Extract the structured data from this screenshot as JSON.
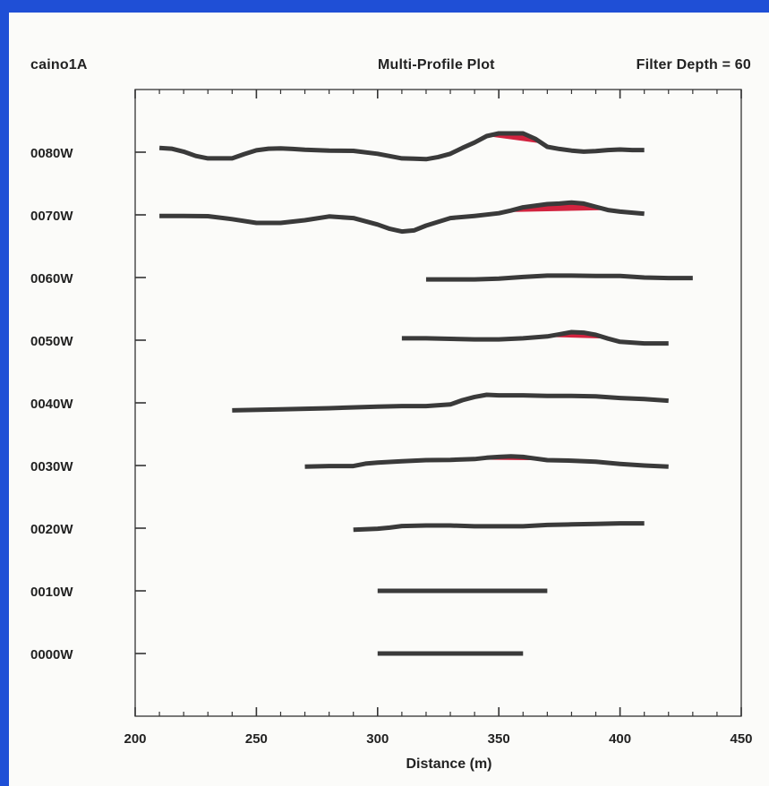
{
  "header": {
    "file_label": "caino1A",
    "filter_label": "Filter Depth =  60"
  },
  "colors": {
    "background": "#1f4fd6",
    "panel": "#fbfbf9",
    "profile_line": "#3a3a3a",
    "anomaly_fill": "#d2233f"
  },
  "chart_data": {
    "type": "line",
    "title": "Multi-Profile Plot",
    "xlabel": "Distance (m)",
    "ylabel": "",
    "xlim": [
      200,
      450
    ],
    "xticks": [
      "200",
      "250",
      "300",
      "350",
      "400",
      "450"
    ],
    "grid": false,
    "legend": "none",
    "series": [
      {
        "name": "0080W",
        "x": [
          210,
          215,
          220,
          225,
          230,
          235,
          240,
          245,
          250,
          255,
          260,
          265,
          270,
          280,
          290,
          300,
          310,
          315,
          320,
          325,
          330,
          335,
          340,
          345,
          350,
          355,
          360,
          365,
          370,
          375,
          380,
          385,
          390,
          395,
          400,
          405,
          410
        ],
        "y": [
          0.8,
          0.65,
          0.1,
          -0.7,
          -1.15,
          -1.15,
          -1.15,
          -0.35,
          0.35,
          0.65,
          0.7,
          0.6,
          0.45,
          0.3,
          0.25,
          -0.3,
          -1.15,
          -1.2,
          -1.3,
          -0.9,
          -0.3,
          0.8,
          1.8,
          3.0,
          3.5,
          3.5,
          3.5,
          2.5,
          1.0,
          0.6,
          0.3,
          0.1,
          0.2,
          0.4,
          0.5,
          0.4,
          0.4
        ],
        "anomaly_range": [
          345,
          368
        ]
      },
      {
        "name": "0070W",
        "x": [
          210,
          220,
          230,
          240,
          250,
          260,
          270,
          280,
          290,
          300,
          305,
          310,
          315,
          320,
          330,
          340,
          350,
          355,
          360,
          370,
          375,
          380,
          385,
          390,
          395,
          400,
          410
        ],
        "y": [
          -0.2,
          -0.2,
          -0.25,
          -0.8,
          -1.5,
          -1.5,
          -1.0,
          -0.3,
          -0.6,
          -1.8,
          -2.6,
          -3.1,
          -2.9,
          -2.0,
          -0.6,
          -0.2,
          0.3,
          0.8,
          1.4,
          2.0,
          2.1,
          2.3,
          2.1,
          1.5,
          0.9,
          0.6,
          0.2
        ],
        "anomaly_range": [
          352,
          395
        ]
      },
      {
        "name": "0060W",
        "x": [
          320,
          330,
          340,
          350,
          360,
          370,
          380,
          390,
          400,
          410,
          420,
          430
        ],
        "y": [
          -0.35,
          -0.35,
          -0.35,
          -0.2,
          0.1,
          0.35,
          0.35,
          0.3,
          0.3,
          0.0,
          -0.1,
          -0.1
        ],
        "anomaly_range": null
      },
      {
        "name": "0050W",
        "x": [
          310,
          320,
          330,
          340,
          350,
          360,
          370,
          375,
          380,
          385,
          390,
          395,
          400,
          410,
          420
        ],
        "y": [
          0.35,
          0.35,
          0.25,
          0.15,
          0.15,
          0.35,
          0.7,
          1.1,
          1.5,
          1.4,
          1.0,
          0.3,
          -0.3,
          -0.6,
          -0.6
        ],
        "anomaly_range": [
          368,
          395
        ]
      },
      {
        "name": "0040W",
        "x": [
          240,
          260,
          280,
          300,
          310,
          320,
          330,
          335,
          340,
          345,
          350,
          360,
          370,
          380,
          390,
          400,
          410,
          420
        ],
        "y": [
          -1.4,
          -1.2,
          -1.0,
          -0.7,
          -0.6,
          -0.6,
          -0.3,
          0.5,
          1.1,
          1.5,
          1.4,
          1.4,
          1.3,
          1.3,
          1.2,
          0.9,
          0.7,
          0.4
        ],
        "anomaly_range": [
          343,
          398
        ]
      },
      {
        "name": "0030W",
        "x": [
          270,
          280,
          290,
          295,
          300,
          310,
          320,
          330,
          340,
          345,
          350,
          355,
          360,
          365,
          370,
          380,
          390,
          400,
          410,
          420
        ],
        "y": [
          -0.2,
          -0.1,
          -0.1,
          0.35,
          0.55,
          0.8,
          1.0,
          1.05,
          1.2,
          1.45,
          1.6,
          1.7,
          1.6,
          1.3,
          1.0,
          0.9,
          0.7,
          0.3,
          0.0,
          -0.2
        ],
        "anomaly_range": [
          335,
          376
        ]
      },
      {
        "name": "0020W",
        "x": [
          290,
          300,
          305,
          310,
          320,
          330,
          340,
          350,
          360,
          370,
          380,
          390,
          400,
          410
        ],
        "y": [
          -0.3,
          -0.1,
          0.1,
          0.4,
          0.5,
          0.5,
          0.35,
          0.35,
          0.35,
          0.6,
          0.7,
          0.8,
          0.9,
          0.9
        ],
        "anomaly_range": null
      },
      {
        "name": "0010W",
        "x": [
          300,
          370
        ],
        "y": [
          0,
          0
        ],
        "anomaly_range": null
      },
      {
        "name": "0000W",
        "x": [
          300,
          360
        ],
        "y": [
          0,
          0
        ],
        "anomaly_range": null
      }
    ]
  }
}
